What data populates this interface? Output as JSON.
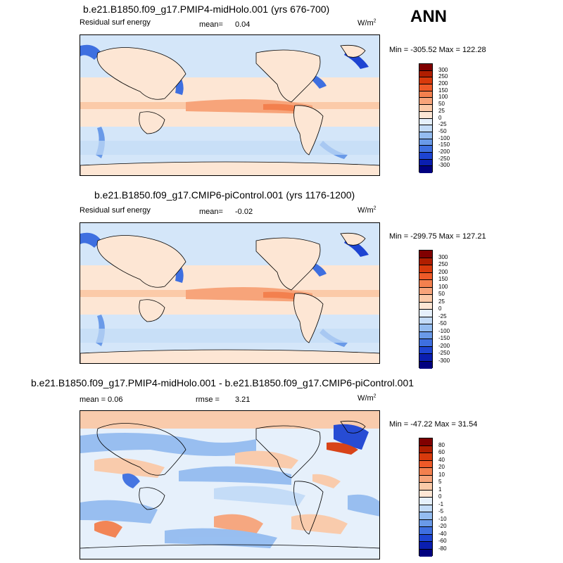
{
  "season": "ANN",
  "units_base": "W/m",
  "units_exp": "2",
  "panels": [
    {
      "title": "b.e21.B1850.f09_g17.PMIP4-midHolo.001 (yrs 676-700)",
      "left_label": "Residual surf energy",
      "stat_label": "mean=",
      "stat_value": "0.04",
      "minmax": "Min = -305.52 Max = 122.28",
      "levels": [
        "300",
        "250",
        "200",
        "150",
        "100",
        "50",
        "25",
        "0",
        "-25",
        "-50",
        "-100",
        "-150",
        "-200",
        "-250",
        "-300"
      ]
    },
    {
      "title": "b.e21.B1850.f09_g17.CMIP6-piControl.001 (yrs 1176-1200)",
      "left_label": "Residual surf energy",
      "stat_label": "mean=",
      "stat_value": "-0.02",
      "minmax": "Min = -299.75 Max = 127.21",
      "levels": [
        "300",
        "250",
        "200",
        "150",
        "100",
        "50",
        "25",
        "0",
        "-25",
        "-50",
        "-100",
        "-150",
        "-200",
        "-250",
        "-300"
      ]
    },
    {
      "title": "b.e21.B1850.f09_g17.PMIP4-midHolo.001 - b.e21.B1850.f09_g17.CMIP6-piControl.001",
      "left_label": "mean =  0.06",
      "stat_label": "rmse =",
      "stat_value": "3.21",
      "minmax": "Min = -47.22 Max = 31.54",
      "levels": [
        "80",
        "60",
        "40",
        "20",
        "10",
        "5",
        "1",
        "0",
        "-1",
        "-5",
        "-10",
        "-20",
        "-40",
        "-60",
        "-80"
      ]
    }
  ],
  "colors": {
    "scale": [
      "#800000",
      "#b01e00",
      "#d83a0c",
      "#ee5a28",
      "#f3804e",
      "#f7a47a",
      "#fbcaa8",
      "#fde6d4",
      "#e6f0fb",
      "#c3dbf7",
      "#94bcf0",
      "#6a9ae8",
      "#3e6fe0",
      "#1d44d2",
      "#0a1eb0",
      "#000080"
    ],
    "land": "#fbe3d2",
    "ocean": "#d4e6f9"
  }
}
